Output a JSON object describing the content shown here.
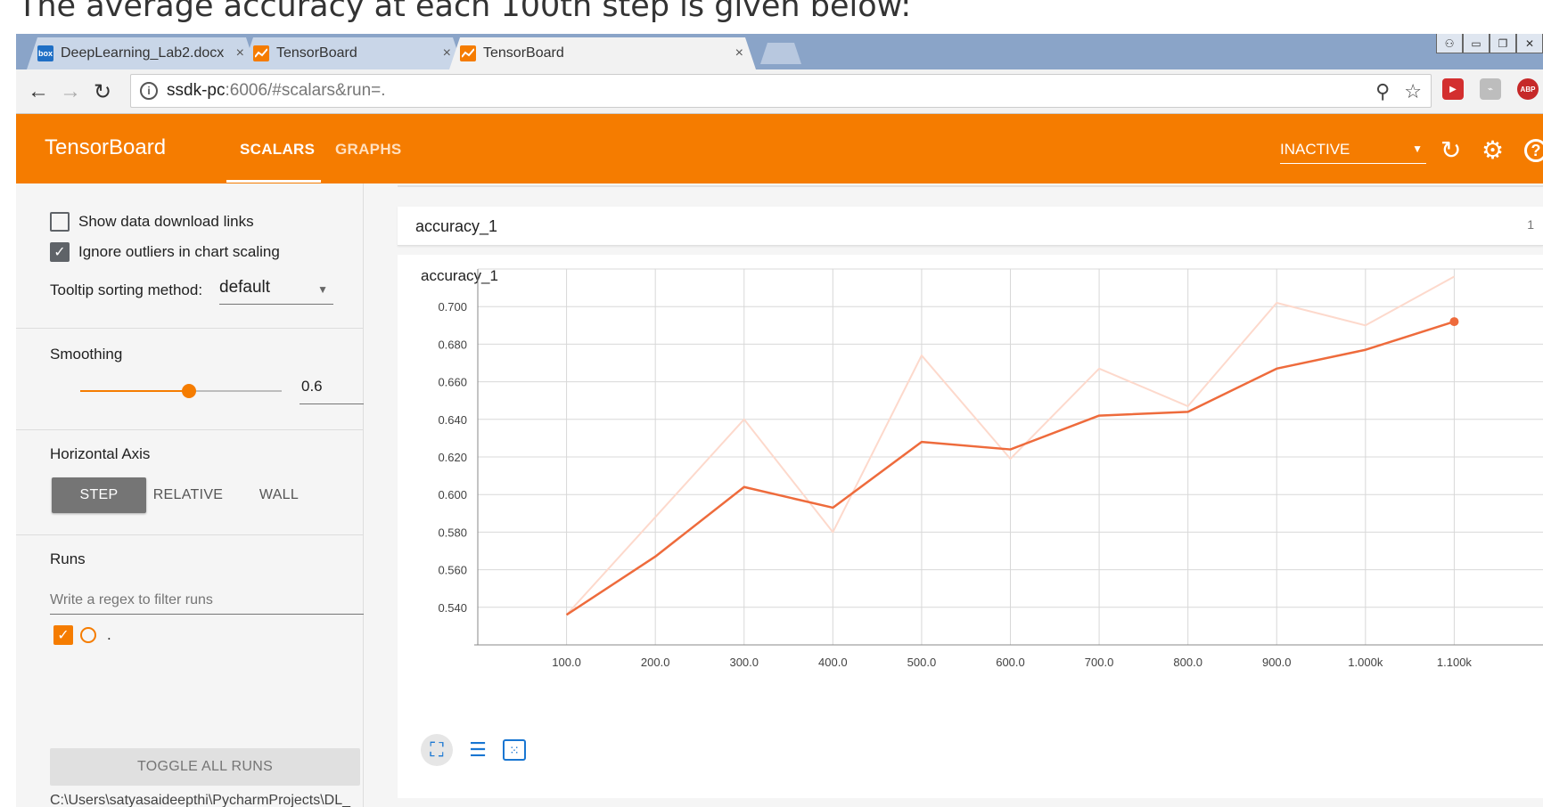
{
  "caption": "The average accuracy at each 100th step is given below:",
  "browser": {
    "tabs": [
      {
        "title": "DeepLearning_Lab2.docx",
        "favicon": "box-icon",
        "close": "×"
      },
      {
        "title": "TensorBoard",
        "favicon": "tensorboard-icon",
        "close": "×"
      },
      {
        "title": "TensorBoard",
        "favicon": "tensorboard-icon",
        "close": "×",
        "active": true
      }
    ],
    "favicon_box_label": "box",
    "url_host": "ssdk-pc",
    "url_path": ":6006/#scalars&run=.",
    "ext_abp": "ABP"
  },
  "header": {
    "logo": "TensorBoard",
    "tabs": [
      "SCALARS",
      "GRAPHS"
    ],
    "status": "INACTIVE",
    "accent": "#f57c00"
  },
  "sidebar": {
    "show_download": "Show data download links",
    "ignore_outliers": "Ignore outliers in chart scaling",
    "tooltip_label": "Tooltip sorting method:",
    "tooltip_value": "default",
    "smoothing_label": "Smoothing",
    "smoothing_value": "0.6",
    "smoothing_fraction": 0.6,
    "axis_label": "Horizontal Axis",
    "axis_options": [
      "STEP",
      "RELATIVE",
      "WALL"
    ],
    "runs_label": "Runs",
    "regex_placeholder": "Write a regex to filter runs",
    "run_name": ".",
    "toggle_label": "TOGGLE ALL RUNS",
    "path": "C:\\Users\\satyasaideepthi\\PycharmProjects\\DL_"
  },
  "card": {
    "title": "accuracy_1",
    "count": "1"
  },
  "chart_data": {
    "type": "line",
    "title": "accuracy_1",
    "x": [
      100,
      200,
      300,
      400,
      500,
      600,
      700,
      800,
      900,
      1000,
      1100
    ],
    "x_tick_labels": [
      "100.0",
      "200.0",
      "300.0",
      "400.0",
      "500.0",
      "600.0",
      "700.0",
      "800.0",
      "900.0",
      "1.000k",
      "1.100k"
    ],
    "y_ticks": [
      0.54,
      0.56,
      0.58,
      0.6,
      0.62,
      0.64,
      0.66,
      0.68,
      0.7
    ],
    "y_tick_labels": [
      "0.540",
      "0.560",
      "0.580",
      "0.600",
      "0.620",
      "0.640",
      "0.660",
      "0.680",
      "0.700"
    ],
    "xlim": [
      0,
      1200
    ],
    "ylim": [
      0.52,
      0.72
    ],
    "grid": true,
    "series": [
      {
        "values": [
          0.536,
          0.588,
          0.64,
          0.58,
          0.674,
          0.619,
          0.667,
          0.647,
          0.702,
          0.69,
          0.716
        ],
        "color": "#fdd9cc",
        "role": "raw"
      },
      {
        "values": [
          0.536,
          0.567,
          0.604,
          0.593,
          0.628,
          0.624,
          0.642,
          0.644,
          0.667,
          0.677,
          0.692
        ],
        "color": "#ee6b3c",
        "role": "smoothed"
      }
    ]
  }
}
